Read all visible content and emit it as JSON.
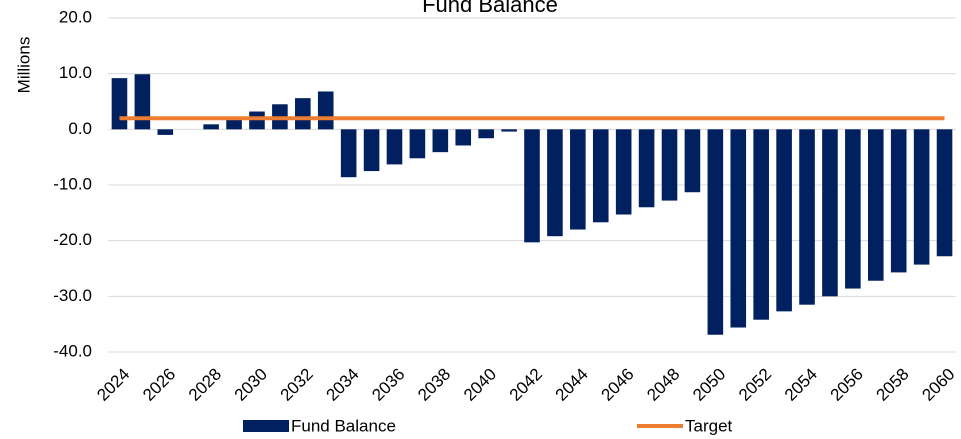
{
  "chart_data": {
    "type": "bar",
    "title": "Fund Balance",
    "y_label": "Millions",
    "categories": [
      "2024",
      null,
      "2026",
      null,
      "2028",
      null,
      "2030",
      null,
      "2032",
      null,
      "2034",
      null,
      "2036",
      null,
      "2038",
      null,
      "2040",
      null,
      "2042",
      null,
      "2044",
      null,
      "2046",
      null,
      "2048",
      null,
      "2050",
      null,
      "2052",
      null,
      "2054",
      null,
      "2056",
      null,
      "2058",
      null,
      "2060"
    ],
    "series": [
      {
        "name": "Fund Balance",
        "type": "bar",
        "color": "#002060",
        "values": [
          9.2,
          9.9,
          -1.0,
          0,
          0.9,
          1.8,
          3.2,
          4.5,
          5.6,
          6.8,
          -8.6,
          -7.5,
          -6.3,
          -5.2,
          -4.1,
          -2.9,
          -1.6,
          -0.4,
          -20.3,
          -19.2,
          -18.0,
          -16.7,
          -15.3,
          -14.0,
          -12.8,
          -11.3,
          -36.9,
          -35.6,
          -34.2,
          -32.7,
          -31.5,
          -30.0,
          -28.6,
          -27.2,
          -25.7,
          -24.3,
          -22.8
        ]
      },
      {
        "name": "Target",
        "type": "line",
        "color": "#ed7d31",
        "values": [
          2,
          2,
          2,
          2,
          2,
          2,
          2,
          2,
          2,
          2,
          2,
          2,
          2,
          2,
          2,
          2,
          2,
          2,
          2,
          2,
          2,
          2,
          2,
          2,
          2,
          2,
          2,
          2,
          2,
          2,
          2,
          2,
          2,
          2,
          2,
          2,
          2
        ]
      }
    ],
    "ylim": [
      -40,
      20
    ],
    "yticks": [
      {
        "value": -40,
        "label": "-40.0"
      },
      {
        "value": -30,
        "label": "-30.0"
      },
      {
        "value": -20,
        "label": "-20.0"
      },
      {
        "value": -10,
        "label": "-10.0"
      },
      {
        "value": 0,
        "label": "0.0"
      },
      {
        "value": 10,
        "label": "10.0"
      },
      {
        "value": 20,
        "label": "20.0"
      }
    ],
    "grid": true,
    "legend": "bottom"
  }
}
